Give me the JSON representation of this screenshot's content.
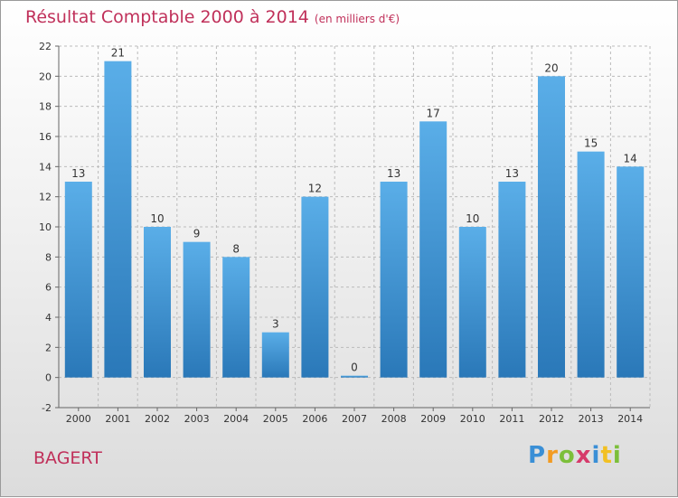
{
  "chart_data": {
    "type": "bar",
    "title": "Résultat Comptable 2000 à 2014",
    "subtitle": "(en milliers d'€)",
    "categories": [
      "2000",
      "2001",
      "2002",
      "2003",
      "2004",
      "2005",
      "2006",
      "2007",
      "2008",
      "2009",
      "2010",
      "2011",
      "2012",
      "2013",
      "2014"
    ],
    "values": [
      13,
      21,
      10,
      9,
      8,
      3,
      12,
      0,
      13,
      17,
      10,
      13,
      20,
      15,
      14
    ],
    "ylim": [
      -2,
      22
    ],
    "yticks": [
      -2,
      0,
      2,
      4,
      6,
      8,
      10,
      12,
      14,
      16,
      18,
      20,
      22
    ],
    "xlabel": "",
    "ylabel": "",
    "grid": true,
    "bar_color_light": "#5aaee8",
    "bar_color_dark": "#2a78b8"
  },
  "commune": "BAGERT",
  "logo": {
    "p": "P",
    "r": "r",
    "o": "o",
    "x": "x",
    "i": "i",
    "t": "t",
    "i2": "i"
  },
  "colors": {
    "title": "#c0305a",
    "grid": "#bbbbbb",
    "axis": "#666666"
  }
}
